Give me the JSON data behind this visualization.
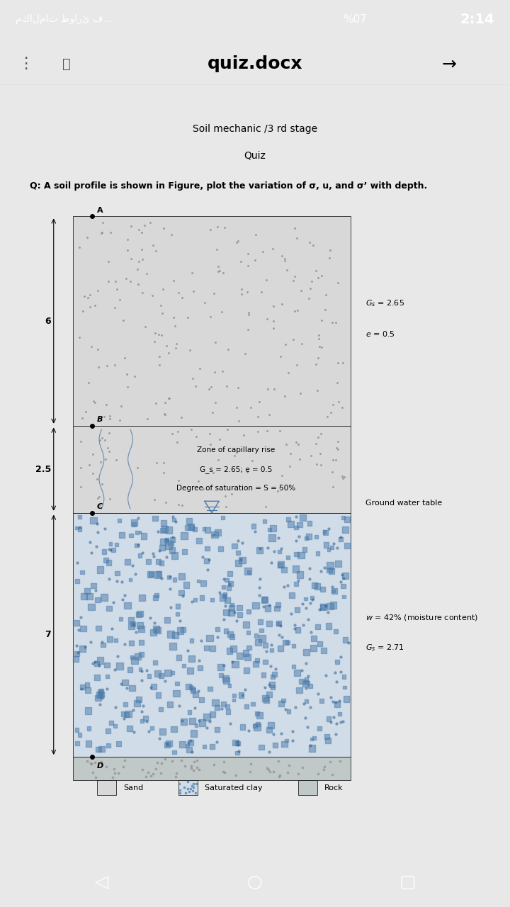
{
  "status_bar_text": "مكالمات طوارئ ف...",
  "status_bar_time": "2:14",
  "status_bar_percent": "%07",
  "nav_title": "quiz.docx",
  "title1": "Soil mechanic /3 rd stage",
  "title2": "Quiz",
  "question": "Q: A soil profile is shown in Figure, plot the variation of σ, u, and σ’ with depth.",
  "bg_color": "#e8e8e8",
  "page_color": "#ffffff",
  "status_bar_bg": "#2d2d2d",
  "nav_bar_bg": "#f5f5f5",
  "android_bar_bg": "#000000",
  "layer1_label": "6",
  "layer2_label": "2.5",
  "layer3_label": "7",
  "point_A": "A",
  "point_B": "B",
  "point_C": "C",
  "point_D": "D",
  "right_text1_line1": "G_s = 2.65",
  "right_text1_line2": "e = 0.5",
  "right_text2": "Ground water table",
  "right_text3_line1": "w = 42% (moisture content)",
  "right_text3_line2": "G_s = 2.71",
  "capillary_text1": "Zone of capillary rise",
  "capillary_text2": "G_s = 2.65; e = 0.5",
  "capillary_text3": "Degree of saturation = S = 50%",
  "legend1": "Sand",
  "legend2": "Saturated clay",
  "legend3": "Rock",
  "sand_color": "#d8d8d8",
  "clay_color_bg": "#b0c8d8",
  "rock_color": "#c0c8c8",
  "gwt_line_color": "#4a7aaa",
  "capillary_line_color": "#4a7aaa"
}
